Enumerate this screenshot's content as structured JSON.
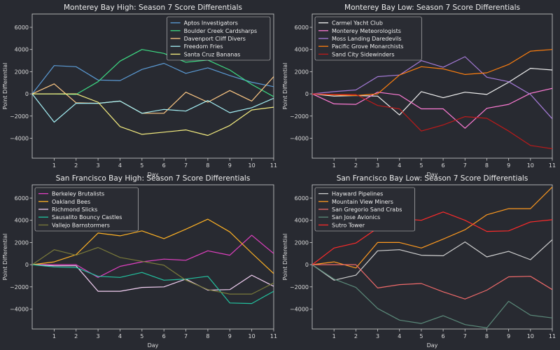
{
  "chart_data": [
    {
      "type": "line",
      "title": "Monterey Bay High: Season 7 Score Differentials",
      "xlabel": "Day",
      "ylabel": "Point Differential",
      "x": [
        0,
        1,
        2,
        3,
        4,
        5,
        6,
        7,
        8,
        9,
        10,
        11
      ],
      "xticks": [
        1,
        2,
        3,
        4,
        5,
        6,
        7,
        8,
        9,
        10,
        11
      ],
      "yticks": [
        -4000,
        -2000,
        0,
        2000,
        4000,
        6000
      ],
      "xlim": [
        0,
        11
      ],
      "ylim": [
        -5800,
        7200
      ],
      "legend": "top-right",
      "series": [
        {
          "name": "Aptos Investigators",
          "color": "#5b9bd5",
          "values": [
            0,
            2550,
            2450,
            1250,
            1200,
            2200,
            2750,
            1850,
            2350,
            1650,
            1050,
            650
          ]
        },
        {
          "name": "Boulder Creek Cardsharps",
          "color": "#3ddc84",
          "values": [
            0,
            0,
            -50,
            1100,
            2950,
            4000,
            3650,
            2850,
            3050,
            2150,
            850,
            -250
          ]
        },
        {
          "name": "Davenport Cliff Divers",
          "color": "#ffc985",
          "values": [
            0,
            900,
            -800,
            -850,
            -650,
            -1750,
            -1750,
            150,
            -750,
            300,
            -650,
            1550
          ]
        },
        {
          "name": "Freedom Fries",
          "color": "#a5f0f5",
          "values": [
            0,
            -2550,
            -850,
            -850,
            -650,
            -1750,
            -1400,
            -1550,
            -600,
            -1700,
            -1250,
            -400
          ]
        },
        {
          "name": "Santa Cruz Bananas",
          "color": "#f7ef81",
          "values": [
            0,
            0,
            0,
            -750,
            -2950,
            -3650,
            -3450,
            -3250,
            -3750,
            -2850,
            -1450,
            -1200
          ]
        }
      ]
    },
    {
      "type": "line",
      "title": "Monterey Bay Low: Season 7 Score Differentials",
      "xlabel": "Day",
      "ylabel": "Point Differential",
      "x": [
        0,
        1,
        2,
        3,
        4,
        5,
        6,
        7,
        8,
        9,
        10,
        11
      ],
      "xticks": [
        1,
        2,
        3,
        4,
        5,
        6,
        7,
        8,
        9,
        10,
        11
      ],
      "yticks": [
        -4000,
        -2000,
        0,
        2000,
        4000,
        6000
      ],
      "xlim": [
        0,
        11
      ],
      "ylim": [
        -5800,
        7200
      ],
      "legend": "top-left",
      "series": [
        {
          "name": "Carmel Yacht Club",
          "color": "#f2f2f2",
          "values": [
            0,
            -200,
            -150,
            -200,
            -1900,
            200,
            -350,
            150,
            -50,
            1050,
            2300,
            2150
          ]
        },
        {
          "name": "Monterey Meteorologists",
          "color": "#ff7bd5",
          "values": [
            0,
            -900,
            -950,
            150,
            -100,
            -1350,
            -1350,
            -3100,
            -1300,
            -950,
            50,
            500
          ]
        },
        {
          "name": "Moss Landing Daredevils",
          "color": "#a67bd8",
          "values": [
            0,
            200,
            350,
            1550,
            1700,
            3000,
            2400,
            3350,
            1500,
            1100,
            -50,
            -2250
          ]
        },
        {
          "name": "Pacific Grove Monarchists",
          "color": "#ff7f0e",
          "values": [
            0,
            -100,
            -150,
            0,
            1700,
            2450,
            2250,
            1750,
            1900,
            2650,
            3850,
            4000
          ]
        },
        {
          "name": "Sand City Sidewinders",
          "color": "#bd1a1a",
          "values": [
            0,
            -50,
            -50,
            -1050,
            -1350,
            -3350,
            -2800,
            -2050,
            -2200,
            -3350,
            -4650,
            -4950
          ]
        }
      ]
    },
    {
      "type": "line",
      "title": "San Francisco Bay High: Season 7 Score Differentials",
      "xlabel": "Day",
      "ylabel": "Point Differential",
      "x": [
        0,
        1,
        2,
        3,
        4,
        5,
        6,
        7,
        8,
        9,
        10,
        11
      ],
      "xticks": [
        1,
        2,
        3,
        4,
        5,
        6,
        7,
        8,
        9,
        10,
        11
      ],
      "yticks": [
        -4000,
        -2000,
        0,
        2000,
        4000,
        6000
      ],
      "xlim": [
        0,
        11
      ],
      "ylim": [
        -5800,
        7200
      ],
      "legend": "top-left",
      "series": [
        {
          "name": "Berkeley Brutalists",
          "color": "#e040c0",
          "values": [
            0,
            0,
            0,
            -1150,
            -150,
            250,
            500,
            400,
            1250,
            850,
            2650,
            1000
          ]
        },
        {
          "name": "Oakland Bees",
          "color": "#ffb224",
          "values": [
            0,
            250,
            900,
            2850,
            2600,
            3050,
            2350,
            3200,
            4100,
            2950,
            1050,
            -800
          ]
        },
        {
          "name": "Richmond Slicks",
          "color": "#f4d0f4",
          "values": [
            0,
            -100,
            -100,
            -2400,
            -2400,
            -2050,
            -2000,
            -1300,
            -2300,
            -2250,
            -950,
            -1950
          ]
        },
        {
          "name": "Sausalito Bouncy Castles",
          "color": "#22c3a0",
          "values": [
            0,
            -200,
            -250,
            -1050,
            -1150,
            -700,
            -1400,
            -1300,
            -1050,
            -3450,
            -3500,
            -2400
          ]
        },
        {
          "name": "Vallejo Barnstormers",
          "color": "#7a7a3a",
          "values": [
            0,
            1350,
            850,
            1550,
            650,
            300,
            -50,
            -1400,
            -2250,
            -2650,
            -2650,
            -1650
          ]
        }
      ]
    },
    {
      "type": "line",
      "title": "San Francisco Bay Low: Season 7 Score Differentials",
      "xlabel": "Day",
      "ylabel": "Point Differential",
      "x": [
        0,
        1,
        2,
        3,
        4,
        5,
        6,
        7,
        8,
        9,
        10,
        11
      ],
      "xticks": [
        1,
        2,
        3,
        4,
        5,
        6,
        7,
        8,
        9,
        10,
        11
      ],
      "yticks": [
        -4000,
        -2000,
        0,
        2000,
        4000,
        6000
      ],
      "xlim": [
        0,
        11
      ],
      "ylim": [
        -5800,
        7200
      ],
      "legend": "top-left",
      "series": [
        {
          "name": "Hayward Pipelines",
          "color": "#d0d0d0",
          "values": [
            0,
            -1400,
            -950,
            1250,
            1350,
            850,
            800,
            2050,
            700,
            1200,
            450,
            2250
          ]
        },
        {
          "name": "Mountain View Miners",
          "color": "#ff9a1f",
          "values": [
            0,
            250,
            -300,
            2000,
            2000,
            1500,
            2300,
            3150,
            4500,
            5050,
            5050,
            7000
          ]
        },
        {
          "name": "San Gregorio Sand Crabs",
          "color": "#f06a6a",
          "values": [
            0,
            0,
            0,
            -2100,
            -1800,
            -1700,
            -2450,
            -3100,
            -2300,
            -1100,
            -1050,
            -2250
          ]
        },
        {
          "name": "San Jose Avionics",
          "color": "#5b8a7a",
          "values": [
            0,
            -1300,
            -2050,
            -3950,
            -5000,
            -5300,
            -4600,
            -5400,
            -5700,
            -3300,
            -4550,
            -4800
          ]
        },
        {
          "name": "Sutro Tower",
          "color": "#ff2a2a",
          "values": [
            0,
            1500,
            1950,
            3300,
            4150,
            4000,
            4750,
            4000,
            3000,
            3050,
            3850,
            4050
          ]
        }
      ]
    }
  ]
}
